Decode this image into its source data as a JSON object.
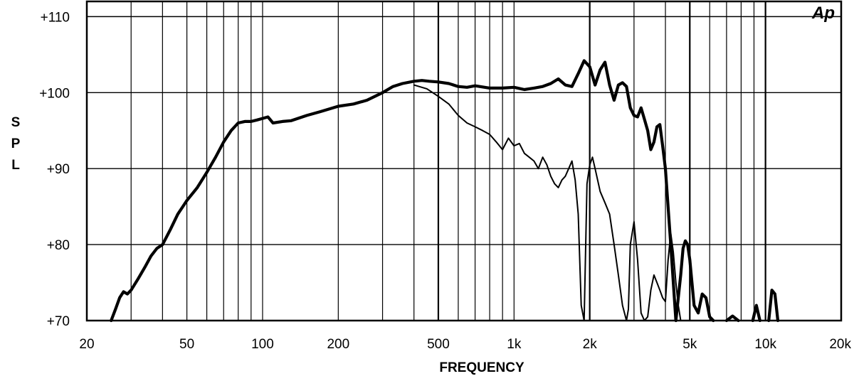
{
  "chart_data": {
    "type": "line",
    "xlabel": "FREQUENCY",
    "ylabel": "SPL",
    "x_scale": "log",
    "xlim": [
      20,
      20000
    ],
    "ylim": [
      70,
      112
    ],
    "grid": true,
    "x_tick_labels": [
      {
        "value": 20,
        "label": "20"
      },
      {
        "value": 50,
        "label": "50"
      },
      {
        "value": 100,
        "label": "100"
      },
      {
        "value": 200,
        "label": "200"
      },
      {
        "value": 500,
        "label": "500"
      },
      {
        "value": 1000,
        "label": "1k"
      },
      {
        "value": 2000,
        "label": "2k"
      },
      {
        "value": 5000,
        "label": "5k"
      },
      {
        "value": 10000,
        "label": "10k"
      },
      {
        "value": 20000,
        "label": "20k"
      }
    ],
    "y_tick_labels": [
      {
        "value": 70,
        "label": "+70"
      },
      {
        "value": 80,
        "label": "+80"
      },
      {
        "value": 90,
        "label": "+90"
      },
      {
        "value": 100,
        "label": "+100"
      },
      {
        "value": 110,
        "label": "+110"
      }
    ],
    "logo": "Ap",
    "series": [
      {
        "style": "thick",
        "x": [
          25,
          26,
          27,
          28,
          29,
          30,
          32,
          34,
          36,
          38,
          40,
          43,
          46,
          50,
          55,
          60,
          65,
          70,
          75,
          80,
          85,
          90,
          95,
          100,
          105,
          110,
          120,
          130,
          150,
          170,
          200,
          230,
          260,
          300,
          330,
          360,
          400,
          430,
          460,
          500,
          550,
          600,
          650,
          700,
          800,
          900,
          1000,
          1100,
          1200,
          1300,
          1400,
          1500,
          1600,
          1700,
          1800,
          1900,
          2000,
          2100,
          2200,
          2300,
          2400,
          2500,
          2600,
          2700,
          2800,
          2900,
          3000,
          3100,
          3200,
          3300,
          3400,
          3500,
          3600,
          3700,
          3800,
          3900,
          4000,
          4200,
          4400,
          4600,
          4700,
          4800,
          4900,
          5000,
          5100,
          5200,
          5400,
          5600,
          5800,
          6000,
          6200
        ],
        "y": [
          70.0,
          71.5,
          73.0,
          73.8,
          73.5,
          74.0,
          75.5,
          77.0,
          78.5,
          79.5,
          80.0,
          82.0,
          84.0,
          85.8,
          87.5,
          89.5,
          91.5,
          93.5,
          95.0,
          96.0,
          96.2,
          96.2,
          96.4,
          96.6,
          96.8,
          96.0,
          96.2,
          96.3,
          97.0,
          97.5,
          98.2,
          98.5,
          99.0,
          100.0,
          100.8,
          101.2,
          101.5,
          101.6,
          101.5,
          101.4,
          101.2,
          100.8,
          100.7,
          100.9,
          100.6,
          100.6,
          100.7,
          100.4,
          100.6,
          100.8,
          101.2,
          101.8,
          101.0,
          100.8,
          102.5,
          104.2,
          103.4,
          101.0,
          103.0,
          104.0,
          101.0,
          99.0,
          101.0,
          101.3,
          100.8,
          98.0,
          97.0,
          96.8,
          98.0,
          96.5,
          95.0,
          92.5,
          93.5,
          95.5,
          95.8,
          93.0,
          90.0,
          80.0,
          70.0,
          76.0,
          79.5,
          80.5,
          80.0,
          78.0,
          75.0,
          72.0,
          71.0,
          73.5,
          73.0,
          70.5,
          70.0
        ]
      },
      {
        "style": "thin",
        "x": [
          400,
          450,
          500,
          550,
          600,
          650,
          700,
          750,
          800,
          850,
          900,
          950,
          1000,
          1050,
          1100,
          1150,
          1200,
          1250,
          1300,
          1350,
          1400,
          1450,
          1500,
          1550,
          1600,
          1650,
          1700,
          1750,
          1800,
          1850,
          1900,
          1950,
          2000,
          2050,
          2100,
          2200,
          2300,
          2400,
          2500,
          2600,
          2700,
          2800,
          2850,
          2900,
          3000,
          3100,
          3200,
          3300,
          3400,
          3500,
          3600,
          3700,
          3800,
          3900,
          4000,
          4100,
          4200,
          4300,
          4400,
          4500,
          4600,
          4700
        ],
        "y": [
          101.0,
          100.5,
          99.5,
          98.5,
          97.0,
          96.0,
          95.5,
          95.0,
          94.5,
          93.5,
          92.5,
          94.0,
          93.0,
          93.3,
          92.0,
          91.5,
          91.0,
          90.0,
          91.5,
          90.5,
          89.0,
          88.0,
          87.5,
          88.5,
          89.0,
          90.0,
          91.0,
          88.5,
          84.0,
          72.0,
          70.0,
          88.0,
          90.5,
          91.5,
          90.0,
          87.0,
          85.5,
          84.0,
          80.0,
          76.0,
          72.0,
          70.0,
          71.5,
          80.0,
          83.0,
          78.0,
          71.0,
          70.0,
          70.5,
          74.0,
          76.0,
          75.0,
          74.0,
          73.0,
          72.5,
          78.0,
          81.5,
          79.0,
          75.0,
          72.0,
          70.0,
          70.0
        ]
      },
      {
        "style": "thick",
        "x": [
          7000,
          7400,
          7800
        ],
        "y": [
          70.0,
          70.6,
          70.0
        ]
      },
      {
        "style": "thick",
        "x": [
          8900,
          9200,
          9500
        ],
        "y": [
          70.0,
          72.0,
          70.0
        ]
      },
      {
        "style": "thick",
        "x": [
          10300,
          10600,
          10900,
          11200
        ],
        "y": [
          70.0,
          74.0,
          73.5,
          70.0
        ]
      }
    ]
  }
}
